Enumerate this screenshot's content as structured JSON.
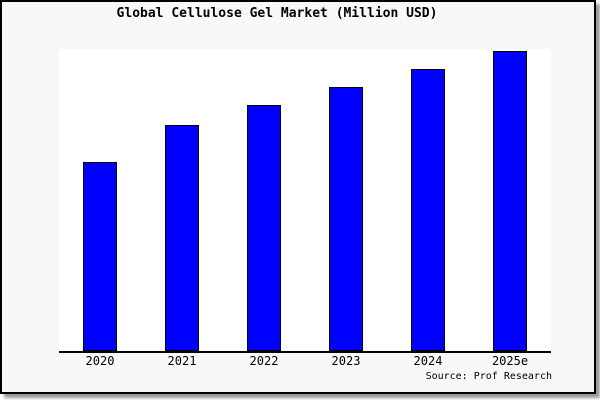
{
  "window": {
    "background": "#ffffff"
  },
  "chart": {
    "title": "Global Cellulose Gel Market (Million USD)",
    "source": "Source: Prof Research",
    "colors": {
      "bar_fill": "#0000ff",
      "bar_border": "#000000",
      "plot_background": "#ffffff",
      "frame_background": "#f8f8f8",
      "frame_border": "#000000",
      "axis_line": "#000000",
      "drop_shadow": "#999999",
      "text": "#000000"
    }
  },
  "chart_data": {
    "type": "bar",
    "title": "Global Cellulose Gel Market (Million USD)",
    "categories": [
      "2020",
      "2021",
      "2022",
      "2023",
      "2024",
      "2025e"
    ],
    "values": [
      63,
      75.5,
      82,
      88,
      94,
      100
    ],
    "xlabel": "",
    "ylabel": "",
    "ylim": [
      0,
      100.7
    ],
    "grid": false,
    "legend": false,
    "y_axis_labels_visible": false,
    "value_note": "No y-axis scale is shown in the image; values are relative estimates of bar heights with 2025e = 100",
    "source": "Source: Prof Research"
  }
}
